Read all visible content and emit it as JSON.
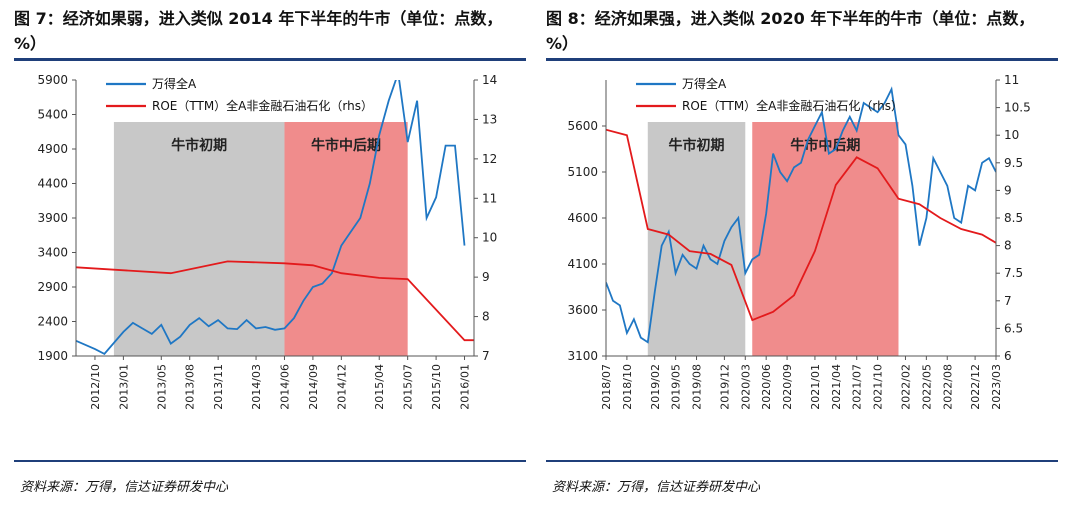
{
  "charts": [
    {
      "figure_title": "图 7：经济如果弱，进入类似 2014 年下半年的牛市（单位：点数，%）",
      "source": "资料来源：万得，信达证券研发中心",
      "chart_data": {
        "type": "line",
        "title": "图 7：经济如果弱，进入类似 2014 年下半年的牛市（单位：点数，%）",
        "x_range": [
          "2012-08",
          "2016-02"
        ],
        "x_ticks": [
          "2012/10",
          "2013/01",
          "2013/05",
          "2013/08",
          "2013/11",
          "2014/03",
          "2014/06",
          "2014/09",
          "2014/12",
          "2015/04",
          "2015/07",
          "2015/10",
          "2016/01"
        ],
        "y_left": {
          "min": 1900,
          "max": 5900,
          "ticks": [
            1900,
            2400,
            2900,
            3400,
            3900,
            4400,
            4900,
            5400,
            5900
          ]
        },
        "y_right": {
          "min": 7,
          "max": 14,
          "ticks": [
            7,
            8,
            9,
            10,
            11,
            12,
            13,
            14
          ]
        },
        "bands": [
          {
            "label": "牛市初期",
            "start": "2012-12",
            "end": "2014-06",
            "color": "#c8c8c8"
          },
          {
            "label": "牛市中后期",
            "start": "2014-06",
            "end": "2015-07",
            "color": "#f08c8c"
          }
        ],
        "series": [
          {
            "name": "万得全A",
            "axis": "left",
            "color": "#1f77c4",
            "points": [
              [
                "2012-08",
                2120
              ],
              [
                "2012-10",
                2000
              ],
              [
                "2012-11",
                1930
              ],
              [
                "2013-01",
                2250
              ],
              [
                "2013-02",
                2380
              ],
              [
                "2013-03",
                2300
              ],
              [
                "2013-04",
                2220
              ],
              [
                "2013-05",
                2350
              ],
              [
                "2013-06",
                2080
              ],
              [
                "2013-07",
                2180
              ],
              [
                "2013-08",
                2350
              ],
              [
                "2013-09",
                2450
              ],
              [
                "2013-10",
                2330
              ],
              [
                "2013-11",
                2420
              ],
              [
                "2013-12",
                2300
              ],
              [
                "2014-01",
                2290
              ],
              [
                "2014-02",
                2420
              ],
              [
                "2014-03",
                2300
              ],
              [
                "2014-04",
                2320
              ],
              [
                "2014-05",
                2280
              ],
              [
                "2014-06",
                2300
              ],
              [
                "2014-07",
                2450
              ],
              [
                "2014-08",
                2700
              ],
              [
                "2014-09",
                2900
              ],
              [
                "2014-10",
                2950
              ],
              [
                "2014-11",
                3100
              ],
              [
                "2014-12",
                3500
              ],
              [
                "2015-01",
                3700
              ],
              [
                "2015-02",
                3900
              ],
              [
                "2015-03",
                4400
              ],
              [
                "2015-04",
                5100
              ],
              [
                "2015-05",
                5600
              ],
              [
                "2015-06",
                6000
              ],
              [
                "2015-07",
                5000
              ],
              [
                "2015-08",
                5600
              ],
              [
                "2015-09",
                3900
              ],
              [
                "2015-10",
                4200
              ],
              [
                "2015-11",
                4950
              ],
              [
                "2015-12",
                4950
              ],
              [
                "2016-01",
                3500
              ]
            ]
          },
          {
            "name": "ROE（TTM）全A非金融石油石化（rhs）",
            "axis": "right",
            "color": "#e31a1c",
            "points": [
              [
                "2012-08",
                9.25
              ],
              [
                "2013-06",
                9.1
              ],
              [
                "2013-12",
                9.4
              ],
              [
                "2014-06",
                9.35
              ],
              [
                "2014-09",
                9.3
              ],
              [
                "2014-12",
                9.1
              ],
              [
                "2015-04",
                8.98
              ],
              [
                "2015-07",
                8.95
              ],
              [
                "2016-01",
                7.4
              ],
              [
                "2016-02",
                7.4
              ]
            ]
          }
        ]
      }
    },
    {
      "figure_title": "图 8：经济如果强，进入类似 2020 年下半年的牛市（单位：点数，%）",
      "source": "资料来源：万得，信达证券研发中心",
      "chart_data": {
        "type": "line",
        "title": "图 8：经济如果强，进入类似 2020 年下半年的牛市（单位：点数，%）",
        "x_range": [
          "2018-07",
          "2023-03"
        ],
        "x_ticks": [
          "2018/07",
          "2018/10",
          "2019/02",
          "2019/05",
          "2019/08",
          "2019/12",
          "2020/03",
          "2020/06",
          "2020/09",
          "2021/01",
          "2021/04",
          "2021/07",
          "2021/10",
          "2022/02",
          "2022/05",
          "2022/08",
          "2022/12",
          "2023/03"
        ],
        "y_left": {
          "min": 3100,
          "max": 6100,
          "ticks": [
            3100,
            3600,
            4100,
            4600,
            5100,
            5600
          ]
        },
        "y_right": {
          "min": 6,
          "max": 11,
          "ticks": [
            6,
            6.5,
            7,
            7.5,
            8,
            8.5,
            9,
            9.5,
            10,
            10.5,
            11
          ]
        },
        "bands": [
          {
            "label": "牛市初期",
            "start": "2019-01",
            "end": "2020-03",
            "color": "#c8c8c8"
          },
          {
            "label": "牛市中后期",
            "start": "2020-04",
            "end": "2022-01",
            "color": "#f08c8c"
          }
        ],
        "series": [
          {
            "name": "万得全A",
            "axis": "left",
            "color": "#1f77c4",
            "points": [
              [
                "2018-07",
                3900
              ],
              [
                "2018-08",
                3700
              ],
              [
                "2018-09",
                3650
              ],
              [
                "2018-10",
                3350
              ],
              [
                "2018-11",
                3500
              ],
              [
                "2018-12",
                3300
              ],
              [
                "2019-01",
                3250
              ],
              [
                "2019-02",
                3800
              ],
              [
                "2019-03",
                4300
              ],
              [
                "2019-04",
                4450
              ],
              [
                "2019-05",
                4000
              ],
              [
                "2019-06",
                4200
              ],
              [
                "2019-07",
                4100
              ],
              [
                "2019-08",
                4050
              ],
              [
                "2019-09",
                4300
              ],
              [
                "2019-10",
                4150
              ],
              [
                "2019-11",
                4100
              ],
              [
                "2019-12",
                4350
              ],
              [
                "2020-01",
                4500
              ],
              [
                "2020-02",
                4600
              ],
              [
                "2020-03",
                4000
              ],
              [
                "2020-04",
                4150
              ],
              [
                "2020-05",
                4200
              ],
              [
                "2020-06",
                4650
              ],
              [
                "2020-07",
                5300
              ],
              [
                "2020-08",
                5100
              ],
              [
                "2020-09",
                5000
              ],
              [
                "2020-10",
                5150
              ],
              [
                "2020-11",
                5200
              ],
              [
                "2020-12",
                5450
              ],
              [
                "2021-01",
                5600
              ],
              [
                "2021-02",
                5750
              ],
              [
                "2021-03",
                5300
              ],
              [
                "2021-04",
                5350
              ],
              [
                "2021-05",
                5550
              ],
              [
                "2021-06",
                5700
              ],
              [
                "2021-07",
                5550
              ],
              [
                "2021-08",
                5850
              ],
              [
                "2021-09",
                5800
              ],
              [
                "2021-10",
                5750
              ],
              [
                "2021-11",
                5850
              ],
              [
                "2021-12",
                6000
              ],
              [
                "2022-01",
                5500
              ],
              [
                "2022-02",
                5400
              ],
              [
                "2022-03",
                4950
              ],
              [
                "2022-04",
                4300
              ],
              [
                "2022-05",
                4600
              ],
              [
                "2022-06",
                5250
              ],
              [
                "2022-07",
                5100
              ],
              [
                "2022-08",
                4950
              ],
              [
                "2022-09",
                4600
              ],
              [
                "2022-10",
                4550
              ],
              [
                "2022-11",
                4950
              ],
              [
                "2022-12",
                4900
              ],
              [
                "2023-01",
                5200
              ],
              [
                "2023-02",
                5250
              ],
              [
                "2023-03",
                5100
              ]
            ]
          },
          {
            "name": "ROE（TTM）全A非金融石油石化（rhs）",
            "axis": "right",
            "color": "#e31a1c",
            "points": [
              [
                "2018-07",
                10.1
              ],
              [
                "2018-10",
                10.0
              ],
              [
                "2019-01",
                8.3
              ],
              [
                "2019-04",
                8.2
              ],
              [
                "2019-07",
                7.9
              ],
              [
                "2019-10",
                7.85
              ],
              [
                "2020-01",
                7.65
              ],
              [
                "2020-04",
                6.65
              ],
              [
                "2020-07",
                6.8
              ],
              [
                "2020-10",
                7.1
              ],
              [
                "2021-01",
                7.9
              ],
              [
                "2021-04",
                9.1
              ],
              [
                "2021-07",
                9.6
              ],
              [
                "2021-10",
                9.4
              ],
              [
                "2022-01",
                8.85
              ],
              [
                "2022-04",
                8.75
              ],
              [
                "2022-07",
                8.5
              ],
              [
                "2022-10",
                8.3
              ],
              [
                "2023-01",
                8.2
              ],
              [
                "2023-03",
                8.05
              ]
            ]
          }
        ]
      }
    }
  ]
}
